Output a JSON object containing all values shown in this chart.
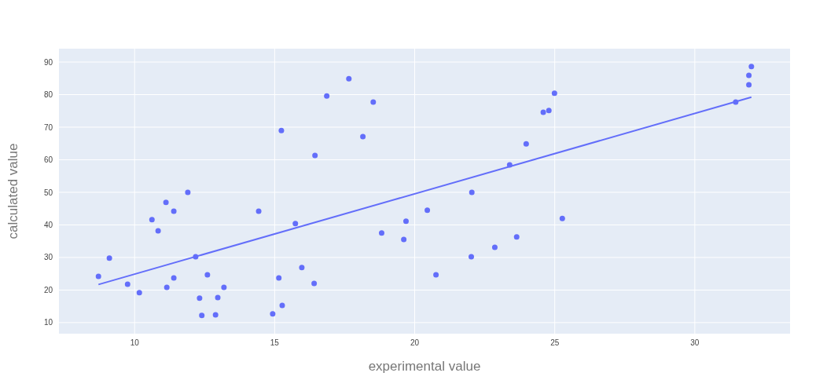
{
  "chart_data": {
    "type": "scatter",
    "xlabel": "experimental value",
    "ylabel": "calculated value",
    "xlim": [
      7.3,
      33.4
    ],
    "ylim": [
      6.6,
      94.1
    ],
    "xticks": [
      10,
      15,
      20,
      25,
      30
    ],
    "yticks": [
      10,
      20,
      30,
      40,
      50,
      60,
      70,
      80,
      90
    ],
    "grid": true,
    "series": [
      {
        "marker": "circle",
        "color": "#636efa",
        "x": [
          8.71,
          9.1,
          9.75,
          10.17,
          10.62,
          10.84,
          11.12,
          11.15,
          11.4,
          11.4,
          11.9,
          12.18,
          12.32,
          12.4,
          12.6,
          12.89,
          12.97,
          13.19,
          14.43,
          14.93,
          15.15,
          15.24,
          15.27,
          15.74,
          15.97,
          16.41,
          16.44,
          16.86,
          17.65,
          18.15,
          18.52,
          18.82,
          19.61,
          19.69,
          20.45,
          20.76,
          22.04,
          22.02,
          22.86,
          23.39,
          23.64,
          23.98,
          24.59,
          24.79,
          24.99,
          25.27,
          31.46,
          31.93,
          31.93,
          32.02
        ],
        "values": [
          24.2,
          29.8,
          21.8,
          19.2,
          41.6,
          38.2,
          46.9,
          20.8,
          44.2,
          23.7,
          50.0,
          30.2,
          17.5,
          12.2,
          24.7,
          12.4,
          17.7,
          20.8,
          44.2,
          12.7,
          23.7,
          69.0,
          15.3,
          40.4,
          26.9,
          22.0,
          61.3,
          79.6,
          84.9,
          67.1,
          77.7,
          37.5,
          35.5,
          41.1,
          44.5,
          24.7,
          50.0,
          30.2,
          33.1,
          58.4,
          36.3,
          64.9,
          74.6,
          75.1,
          80.4,
          42.0,
          77.7,
          83.0,
          85.9,
          88.6
        ]
      },
      {
        "type": "line",
        "marker": "none",
        "color": "#636efa",
        "x": [
          8.71,
          32.02
        ],
        "values": [
          21.7,
          79.2
        ]
      }
    ]
  }
}
